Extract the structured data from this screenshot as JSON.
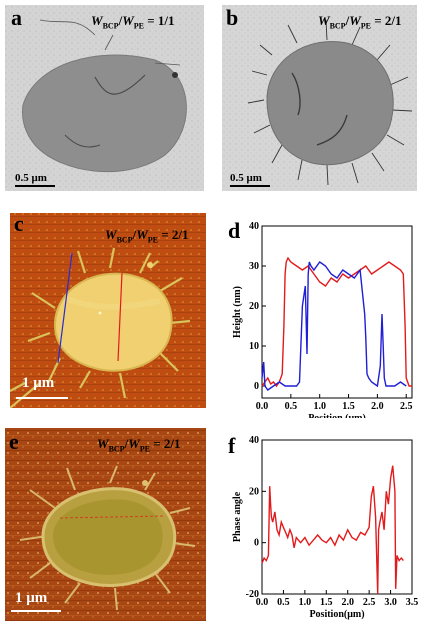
{
  "panels": {
    "a": {
      "label": "a",
      "ratio_value": "= 1/1",
      "scale": "0.5 μm"
    },
    "b": {
      "label": "b",
      "ratio_value": "= 2/1",
      "scale": "0.5 μm"
    },
    "c": {
      "label": "c",
      "ratio_value": "= 2/1",
      "scale": "1 μm"
    },
    "d": {
      "label": "d"
    },
    "e": {
      "label": "e",
      "ratio_value": "= 2/1",
      "scale": "1 μm"
    },
    "f": {
      "label": "f"
    }
  },
  "ratio_parts": {
    "w1": "W",
    "sub1": "BCP",
    "slash": "/",
    "w2": "W",
    "sub2": "PE"
  },
  "colors": {
    "red": "#e31a1c",
    "blue": "#1f1fd6",
    "afm_bg": "#b84a14",
    "afm_dot": "#e8c860",
    "tem_bg": "#d8d8d8",
    "tem_dark": "#8c8c8c"
  },
  "chart_data": [
    {
      "type": "line",
      "panel": "d",
      "xlabel": "Position (μm)",
      "ylabel": "Height (nm)",
      "xlim": [
        0.0,
        2.6
      ],
      "ylim": [
        -3,
        40
      ],
      "xticks": [
        "0.0",
        "0.5",
        "1.0",
        "1.5",
        "2.0",
        "2.5"
      ],
      "yticks": [
        "0",
        "10",
        "20",
        "30",
        "40"
      ],
      "series": [
        {
          "color": "#e31a1c",
          "x": [
            0.0,
            0.05,
            0.1,
            0.15,
            0.2,
            0.25,
            0.3,
            0.35,
            0.38,
            0.4,
            0.42,
            0.45,
            0.5,
            0.6,
            0.7,
            0.8,
            0.9,
            1.0,
            1.1,
            1.2,
            1.3,
            1.4,
            1.5,
            1.6,
            1.7,
            1.8,
            1.9,
            2.0,
            2.1,
            2.2,
            2.3,
            2.4,
            2.45,
            2.48,
            2.5,
            2.55,
            2.6
          ],
          "y": [
            0,
            1,
            2,
            0.5,
            1,
            0,
            1,
            3,
            15,
            28,
            31,
            32,
            31,
            30,
            29,
            30,
            28,
            26,
            25,
            27,
            26,
            28,
            27,
            28,
            29,
            30,
            28,
            29,
            30,
            31,
            30,
            29,
            28,
            15,
            2,
            0,
            0
          ]
        },
        {
          "color": "#1f1fd6",
          "x": [
            0.0,
            0.03,
            0.05,
            0.1,
            0.2,
            0.3,
            0.4,
            0.5,
            0.6,
            0.65,
            0.7,
            0.75,
            0.78,
            0.8,
            0.82,
            0.85,
            0.9,
            1.0,
            1.1,
            1.2,
            1.3,
            1.4,
            1.5,
            1.6,
            1.7,
            1.75,
            1.78,
            1.8,
            1.82,
            1.85,
            1.9,
            2.0,
            2.05,
            2.08,
            2.1,
            2.12,
            2.15,
            2.2,
            2.3,
            2.4,
            2.5
          ],
          "y": [
            2,
            6,
            0,
            -1,
            0,
            1,
            0,
            0,
            0,
            1,
            20,
            25,
            8,
            28,
            31,
            30,
            29,
            31,
            30,
            28,
            27,
            29,
            28,
            27,
            29,
            22,
            18,
            12,
            3,
            2,
            1,
            0,
            5,
            18,
            10,
            2,
            0,
            0,
            0,
            1,
            0
          ]
        }
      ]
    },
    {
      "type": "line",
      "panel": "f",
      "xlabel": "Position(μm)",
      "ylabel": "Phase angle",
      "xlim": [
        0.0,
        3.5
      ],
      "ylim": [
        -20,
        40
      ],
      "xticks": [
        "0.0",
        "0.5",
        "1.0",
        "1.5",
        "2.0",
        "2.5",
        "3.0",
        "3.5"
      ],
      "yticks": [
        "-20",
        "0",
        "20",
        "40"
      ],
      "series": [
        {
          "color": "#e31a1c",
          "x": [
            0.0,
            0.05,
            0.1,
            0.15,
            0.18,
            0.2,
            0.22,
            0.25,
            0.3,
            0.35,
            0.4,
            0.45,
            0.5,
            0.55,
            0.6,
            0.65,
            0.7,
            0.75,
            0.8,
            0.9,
            1.0,
            1.1,
            1.2,
            1.3,
            1.4,
            1.5,
            1.6,
            1.7,
            1.8,
            1.9,
            2.0,
            2.1,
            2.2,
            2.3,
            2.4,
            2.5,
            2.55,
            2.6,
            2.65,
            2.7,
            2.72,
            2.75,
            2.8,
            2.85,
            2.9,
            2.95,
            3.0,
            3.05,
            3.1,
            3.12,
            3.15,
            3.2,
            3.25,
            3.3
          ],
          "y": [
            -8,
            -6,
            -7,
            -5,
            22,
            15,
            10,
            8,
            12,
            5,
            3,
            8,
            6,
            4,
            2,
            5,
            3,
            -2,
            2,
            0,
            2,
            -1,
            1,
            3,
            1,
            0,
            2,
            -1,
            3,
            1,
            5,
            2,
            1,
            4,
            3,
            6,
            18,
            22,
            10,
            -20,
            5,
            8,
            12,
            5,
            20,
            15,
            25,
            30,
            20,
            -18,
            -5,
            -7,
            -6,
            -7
          ]
        }
      ]
    }
  ]
}
